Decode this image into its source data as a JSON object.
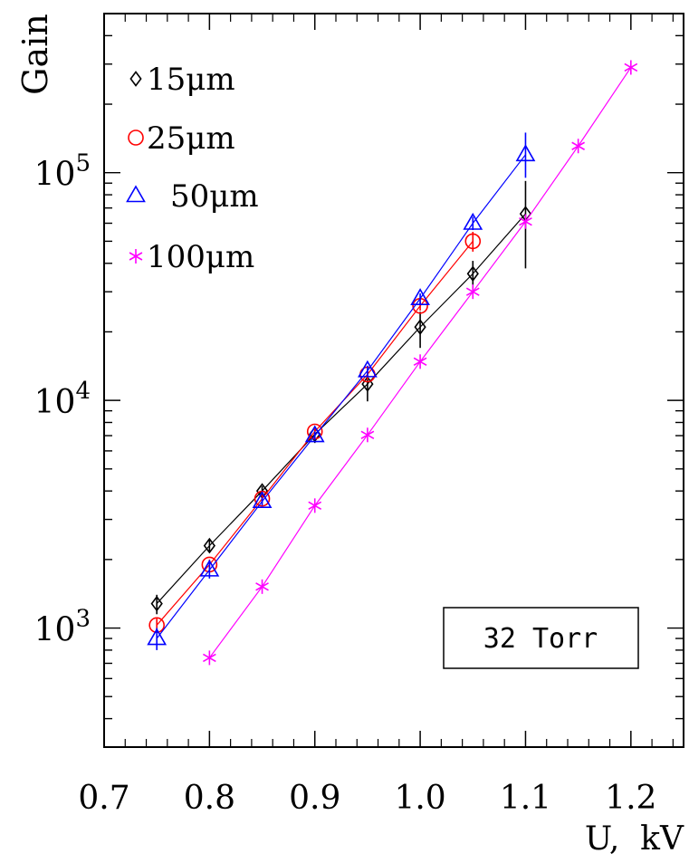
{
  "chart_data": {
    "type": "scatter",
    "title": "",
    "xlabel": "U,  kV",
    "ylabel": "Gain",
    "xlim": [
      0.7,
      1.25
    ],
    "ylim": [
      300,
      500000
    ],
    "yscale": "log",
    "x_ticks": [
      0.7,
      0.8,
      0.9,
      1.0,
      1.1,
      1.2
    ],
    "x_tick_labels": [
      "0.7",
      "0.8",
      "0.9",
      "1.0",
      "1.1",
      "1.2"
    ],
    "y_ticks": [
      1000,
      10000,
      100000
    ],
    "y_tick_mantissa": "10",
    "y_tick_exponents": [
      "3",
      "4",
      "5"
    ],
    "grid": false,
    "legend_position": "top-left",
    "annotation": "32 Torr",
    "series": [
      {
        "name": "15μm",
        "color": "#000000",
        "marker": "diamond",
        "x": [
          0.75,
          0.8,
          0.85,
          0.9,
          0.95,
          1.0,
          1.05,
          1.1
        ],
        "y": [
          1280,
          2300,
          4000,
          7100,
          11800,
          21000,
          36000,
          66000
        ],
        "err_low": [
          1150,
          2150,
          3800,
          6500,
          9900,
          17000,
          30500,
          38000
        ],
        "err_high": [
          1400,
          2450,
          4200,
          7600,
          13400,
          24500,
          41000,
          92000
        ]
      },
      {
        "name": "25μm",
        "color": "#ff0000",
        "marker": "circle",
        "x": [
          0.75,
          0.8,
          0.85,
          0.9,
          0.95,
          1.0,
          1.05
        ],
        "y": [
          1030,
          1900,
          3700,
          7300,
          13000,
          26000,
          50000
        ],
        "err_low": [
          960,
          1800,
          3550,
          7000,
          12300,
          24800,
          45000
        ],
        "err_high": [
          1100,
          2000,
          3850,
          7600,
          13700,
          27200,
          55000
        ]
      },
      {
        "name": "50μm",
        "color": "#0000ff",
        "marker": "triangle",
        "x": [
          0.75,
          0.8,
          0.85,
          0.9,
          0.95,
          1.0,
          1.05,
          1.1
        ],
        "y": [
          900,
          1800,
          3600,
          7000,
          13500,
          28000,
          60000,
          120000
        ],
        "err_low": [
          800,
          1650,
          3450,
          6700,
          12800,
          26500,
          56000,
          95000
        ],
        "err_high": [
          1000,
          1950,
          3750,
          7300,
          14200,
          29500,
          64000,
          150000
        ]
      },
      {
        "name": "100μm",
        "color": "#ff00ff",
        "marker": "star",
        "x": [
          0.8,
          0.85,
          0.9,
          0.95,
          1.0,
          1.05,
          1.1,
          1.15,
          1.2
        ],
        "y": [
          740,
          1520,
          3450,
          7050,
          14800,
          30000,
          61000,
          131000,
          290000
        ]
      }
    ]
  }
}
